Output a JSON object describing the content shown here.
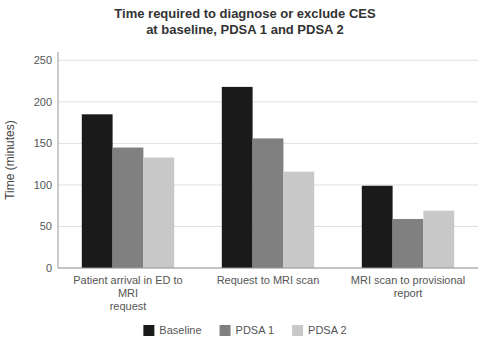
{
  "chart_data": {
    "type": "bar",
    "title": "Time required to diagnose or exclude CES\nat baseline, PDSA 1 and PDSA 2",
    "ylabel": "Time (minutes)",
    "categories": [
      "Patient arrival in ED to MRI\nrequest",
      "Request to MRI scan",
      "MRI scan to provisional report"
    ],
    "series": [
      {
        "name": "Baseline",
        "color": "#1a1a1a",
        "values": [
          185,
          218,
          99
        ]
      },
      {
        "name": "PDSA 1",
        "color": "#808080",
        "values": [
          145,
          156,
          59
        ]
      },
      {
        "name": "PDSA 2",
        "color": "#c8c8c8",
        "values": [
          133,
          116,
          69
        ]
      }
    ],
    "ylim": [
      0,
      260
    ],
    "yticks": [
      0,
      50,
      100,
      150,
      200,
      250
    ],
    "grid": true,
    "legend": "bottom"
  }
}
